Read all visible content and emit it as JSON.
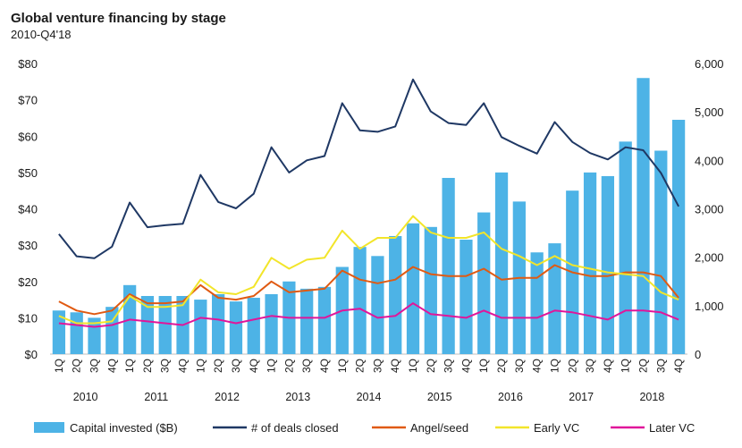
{
  "chart_data": {
    "type": "bar+line",
    "title": "Global venture financing by stage",
    "subtitle": "2010-Q4'18",
    "quarters": [
      "1Q",
      "2Q",
      "3Q",
      "4Q",
      "1Q",
      "2Q",
      "3Q",
      "4Q",
      "1Q",
      "2Q",
      "3Q",
      "4Q",
      "1Q",
      "2Q",
      "3Q",
      "4Q",
      "1Q",
      "2Q",
      "3Q",
      "4Q",
      "1Q",
      "2Q",
      "3Q",
      "4Q",
      "1Q",
      "2Q",
      "3Q",
      "4Q",
      "1Q",
      "2Q",
      "3Q",
      "4Q",
      "1Q",
      "2Q",
      "3Q",
      "4Q"
    ],
    "years": [
      "2010",
      "2011",
      "2012",
      "2013",
      "2014",
      "2015",
      "2016",
      "2017",
      "2018"
    ],
    "y_left": {
      "ticks": [
        "$0",
        "$10",
        "$20",
        "$30",
        "$40",
        "$50",
        "$60",
        "$70",
        "$80"
      ],
      "ylim": [
        0,
        80
      ]
    },
    "y_right": {
      "ticks": [
        "0",
        "1,000",
        "2,000",
        "3,000",
        "4,000",
        "5,000",
        "6,000"
      ],
      "ylim": [
        0,
        6000
      ]
    },
    "bars": {
      "name": "Capital invested ($B)",
      "color": "#4db3e6",
      "values": [
        12,
        11.5,
        10,
        13,
        19,
        16,
        16,
        16,
        15,
        16.5,
        14.5,
        15.5,
        16.5,
        20,
        18,
        18.5,
        24,
        29.5,
        27,
        32.5,
        36,
        35,
        48.5,
        31.5,
        39,
        50,
        42,
        28,
        30.5,
        45,
        50,
        49,
        58.5,
        76,
        56,
        64.5
      ]
    },
    "series": [
      {
        "name": "# of deals closed",
        "axis": "right",
        "color": "#1f3864",
        "values": [
          2480,
          2020,
          1980,
          2220,
          3130,
          2620,
          2660,
          2690,
          3700,
          3140,
          3010,
          3310,
          4270,
          3750,
          4000,
          4090,
          5180,
          4620,
          4590,
          4700,
          5670,
          5010,
          4770,
          4730,
          5180,
          4480,
          4300,
          4140,
          4790,
          4380,
          4150,
          4020,
          4270,
          4210,
          3740,
          3050
        ]
      },
      {
        "name": "Angel/seed",
        "axis": "left",
        "color": "#e05a12",
        "values": [
          14.5,
          12,
          11,
          12,
          16.5,
          14,
          14,
          14.5,
          19,
          15.5,
          15,
          16,
          20,
          17,
          17.5,
          18,
          23,
          20.5,
          19.5,
          20.5,
          24,
          22,
          21.5,
          21.5,
          23.5,
          20.5,
          21,
          21,
          24.5,
          22.5,
          21.5,
          21.5,
          22.5,
          22.5,
          21.5,
          15.5
        ]
      },
      {
        "name": "Early VC",
        "axis": "left",
        "color": "#f2e52a",
        "values": [
          10.5,
          8.5,
          8.5,
          9,
          16,
          13,
          13,
          13.5,
          20.5,
          17,
          16.5,
          18.5,
          26.5,
          23.5,
          26,
          26.5,
          34,
          29,
          32,
          32,
          38,
          33.5,
          32,
          32,
          33.5,
          29,
          27,
          24.5,
          27,
          24.5,
          23.5,
          22.5,
          22,
          21.5,
          17,
          15
        ]
      },
      {
        "name": "Later VC",
        "axis": "left",
        "color": "#e0169a",
        "values": [
          8.5,
          8,
          7.5,
          8,
          9.5,
          9,
          8.5,
          8,
          10,
          9.5,
          8.5,
          9.5,
          10.5,
          10,
          10,
          10,
          12,
          12.5,
          10,
          10.5,
          14,
          11,
          10.5,
          10,
          12,
          10,
          10,
          10,
          12,
          11.5,
          10.5,
          9.5,
          12,
          12,
          11.5,
          9.5
        ]
      }
    ]
  }
}
